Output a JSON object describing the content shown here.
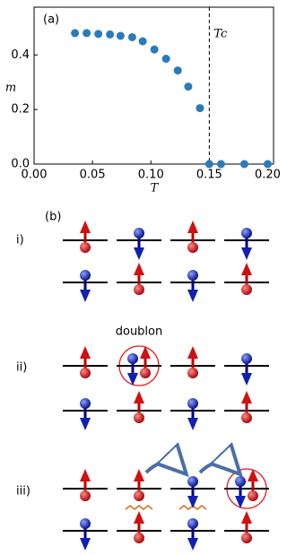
{
  "chart_data": {
    "type": "scatter",
    "panel_label": "(a)",
    "x_label": "T",
    "y_label": "m",
    "series": [
      {
        "color": "#2b7bba",
        "x": [
          0.035,
          0.045,
          0.055,
          0.065,
          0.074,
          0.084,
          0.093,
          0.103,
          0.113,
          0.123,
          0.132,
          0.142,
          0.15,
          0.16,
          0.18,
          0.2
        ],
        "values": [
          0.48,
          0.48,
          0.477,
          0.475,
          0.47,
          0.465,
          0.45,
          0.42,
          0.386,
          0.343,
          0.284,
          0.205,
          0,
          0,
          0,
          0
        ]
      }
    ],
    "xlim": [
      0,
      0.205
    ],
    "ylim": [
      0,
      0.575
    ],
    "xticks": [
      {
        "value": 0,
        "label": "0.00"
      },
      {
        "value": 0.05,
        "label": "0.05"
      },
      {
        "value": 0.1,
        "label": "0.10"
      },
      {
        "value": 0.15,
        "label": "0.15"
      },
      {
        "value": 0.2,
        "label": "0.20"
      }
    ],
    "yticks": [
      {
        "value": 0,
        "label": "0.0"
      },
      {
        "value": 0.2,
        "label": "0.2"
      },
      {
        "value": 0.4,
        "label": "0.4"
      }
    ],
    "critical_line": {
      "value": 0.15,
      "label": "Tc"
    }
  },
  "diagram": {
    "panel_label": "(b)",
    "rows": [
      "i)",
      "ii)",
      "iii)"
    ],
    "doublon_label": "doublon"
  }
}
